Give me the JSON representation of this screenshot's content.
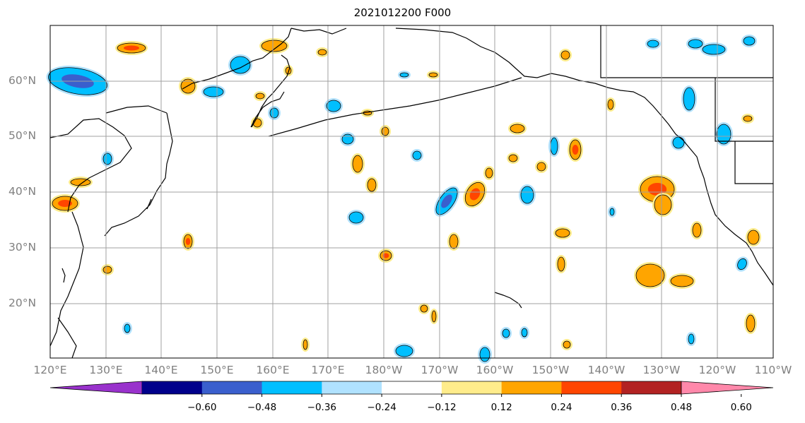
{
  "title": "2021012200 F000",
  "lat_labels": [
    "60°N",
    "50°N",
    "40°N",
    "30°N",
    "20°N"
  ],
  "lon_labels": [
    "120°E",
    "130°E",
    "140°E",
    "150°E",
    "160°E",
    "170°E",
    "180°W",
    "170°W",
    "160°W",
    "150°W",
    "140°W",
    "130°W",
    "120°W",
    "110°W"
  ],
  "colorbar": {
    "ticks": [
      "−0.60",
      "−0.48",
      "−0.36",
      "−0.24",
      "−0.12",
      "0.12",
      "0.24",
      "0.36",
      "0.48",
      "0.60"
    ],
    "colors": [
      "#9932cc",
      "#00008b",
      "#3a5fcd",
      "#00bfff",
      "#b0e2ff",
      "#ffffff",
      "#ffec8b",
      "#ffa500",
      "#ff4500",
      "#b22222",
      "#ff88aa"
    ]
  },
  "map": {
    "lon_range": [
      "120°E",
      "110°W"
    ],
    "lat_range": [
      "10°N",
      "70°N"
    ],
    "grid": true,
    "field_colors": {
      "neg_light": "#b0e2ff",
      "neg_mid": "#00bfff",
      "neg_strong": "#3a5fcd",
      "pos_light": "#ffec8b",
      "pos_mid": "#ffa500",
      "pos_strong": "#ff4500"
    }
  }
}
